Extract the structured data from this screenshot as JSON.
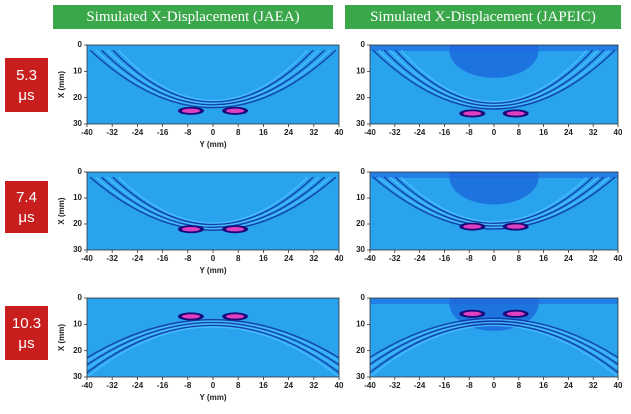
{
  "headers": [
    "Simulated X-Displacement (JAEA)",
    "Simulated X-Displacement (JAPEIC)"
  ],
  "times": [
    {
      "value": "5.3",
      "unit": "μs"
    },
    {
      "value": "7.4",
      "unit": "μs"
    },
    {
      "value": "10.3",
      "unit": "μs"
    }
  ],
  "axes": {
    "x_label": "Y (mm)",
    "y_label": "X (mm)",
    "xlim": [
      -40,
      40
    ],
    "xticks": [
      -40,
      -32,
      -24,
      -16,
      -8,
      0,
      8,
      16,
      24,
      32,
      40
    ],
    "ylim": [
      0,
      30
    ],
    "yticks": [
      0,
      10,
      20,
      30
    ]
  }
}
